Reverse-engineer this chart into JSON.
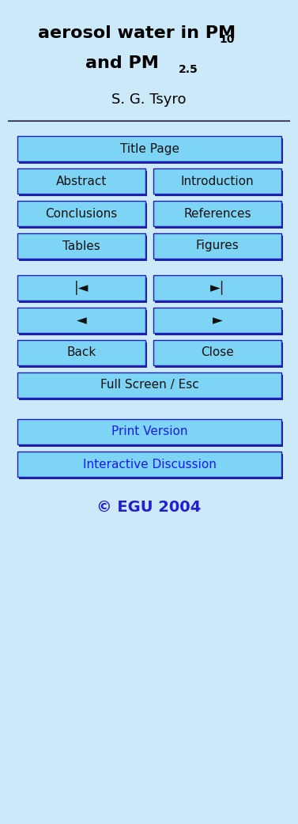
{
  "bg_color": "#cce9f9",
  "title_line1": "aerosol water in PM",
  "title_sub1": "10",
  "title_line2": "and PM",
  "title_sub2": "2.5",
  "author": "S. G. Tsyro",
  "button_bg": "#7dd4f5",
  "button_border": "#2020b0",
  "button_text_color": "#111111",
  "blue_text_color": "#1a1aee",
  "copyright_color": "#2020cc",
  "copyright": "© EGU 2004",
  "figwidth": 3.77,
  "figheight": 10.42,
  "dpi": 100
}
